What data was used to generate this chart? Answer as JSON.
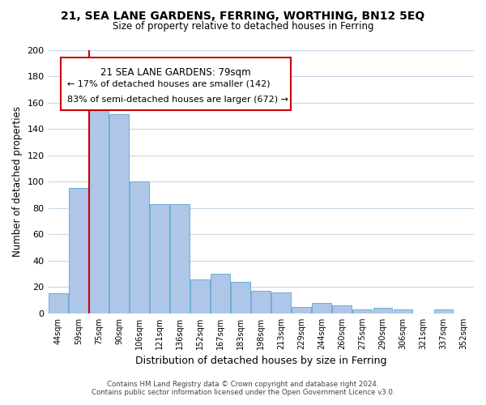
{
  "title": "21, SEA LANE GARDENS, FERRING, WORTHING, BN12 5EQ",
  "subtitle": "Size of property relative to detached houses in Ferring",
  "xlabel": "Distribution of detached houses by size in Ferring",
  "ylabel": "Number of detached properties",
  "bar_color": "#aec6e8",
  "bar_edge_color": "#6baed6",
  "categories": [
    "44sqm",
    "59sqm",
    "75sqm",
    "90sqm",
    "106sqm",
    "121sqm",
    "136sqm",
    "152sqm",
    "167sqm",
    "183sqm",
    "198sqm",
    "213sqm",
    "229sqm",
    "244sqm",
    "260sqm",
    "275sqm",
    "290sqm",
    "306sqm",
    "321sqm",
    "337sqm",
    "352sqm"
  ],
  "values": [
    15,
    95,
    158,
    151,
    100,
    83,
    83,
    26,
    30,
    24,
    17,
    16,
    5,
    8,
    6,
    3,
    4,
    3,
    0,
    3,
    0
  ],
  "ylim": [
    0,
    200
  ],
  "yticks": [
    0,
    20,
    40,
    60,
    80,
    100,
    120,
    140,
    160,
    180,
    200
  ],
  "vline_x_index": 2,
  "vline_color": "#cc0000",
  "annotation_title": "21 SEA LANE GARDENS: 79sqm",
  "annotation_line1": "← 17% of detached houses are smaller (142)",
  "annotation_line2": "83% of semi-detached houses are larger (672) →",
  "footnote1": "Contains HM Land Registry data © Crown copyright and database right 2024.",
  "footnote2": "Contains public sector information licensed under the Open Government Licence v3.0.",
  "background_color": "#ffffff",
  "grid_color": "#c8d8e8"
}
